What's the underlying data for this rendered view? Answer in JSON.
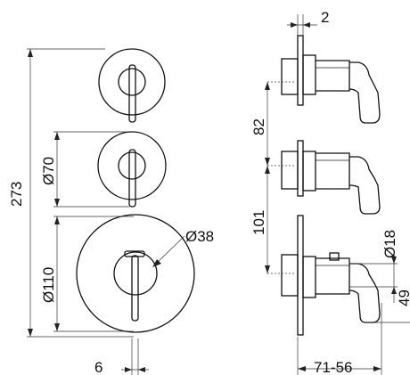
{
  "dimensions": {
    "overall_height": "273",
    "small_diameter": "Ø70",
    "large_diameter": "Ø110",
    "knob_diameter": "Ø38",
    "bottom_offset": "6",
    "top_thickness": "2",
    "spacing_upper": "82",
    "spacing_lower": "101",
    "side_diameter": "Ø18",
    "side_depth": "49",
    "projection": "71-56"
  }
}
